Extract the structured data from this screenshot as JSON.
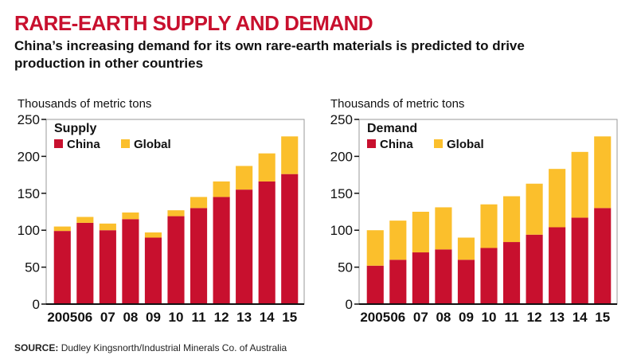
{
  "title": "RARE-EARTH SUPPLY AND DEMAND",
  "subtitle": "China’s increasing demand for its own rare-earth materials is predicted to drive production in other countries",
  "source_label": "SOURCE:",
  "source_text": "Dudley Kingsnorth/Industrial Minerals Co. of Australia",
  "colors": {
    "china": "#c8102e",
    "global": "#fbbf2c",
    "title": "#c8102e",
    "plot_bg": "#ffffff",
    "axis": "#111111"
  },
  "chart_data": [
    {
      "type": "bar",
      "stacked": true,
      "title": "Supply",
      "ylabel": "Thousands of metric tons",
      "ylim": [
        0,
        250
      ],
      "yticks": [
        0,
        50,
        100,
        150,
        200,
        250
      ],
      "categories": [
        "2005",
        "06",
        "07",
        "08",
        "09",
        "10",
        "11",
        "12",
        "13",
        "14",
        "15"
      ],
      "legend_position": "top-left",
      "series": [
        {
          "name": "China",
          "color": "#c8102e",
          "values": [
            99,
            110,
            100,
            115,
            90,
            119,
            130,
            145,
            155,
            166,
            176
          ]
        },
        {
          "name": "Global",
          "color": "#fbbf2c",
          "values": [
            6,
            8,
            9,
            9,
            7,
            8,
            15,
            21,
            32,
            38,
            51
          ]
        }
      ]
    },
    {
      "type": "bar",
      "stacked": true,
      "title": "Demand",
      "ylabel": "Thousands of metric tons",
      "ylim": [
        0,
        250
      ],
      "yticks": [
        0,
        50,
        100,
        150,
        200,
        250
      ],
      "categories": [
        "2005",
        "06",
        "07",
        "08",
        "09",
        "10",
        "11",
        "12",
        "13",
        "14",
        "15"
      ],
      "legend_position": "top-left",
      "series": [
        {
          "name": "China",
          "color": "#c8102e",
          "values": [
            52,
            60,
            70,
            74,
            60,
            76,
            84,
            94,
            104,
            117,
            130
          ]
        },
        {
          "name": "Global",
          "color": "#fbbf2c",
          "values": [
            48,
            53,
            55,
            57,
            30,
            59,
            62,
            69,
            79,
            89,
            97
          ]
        }
      ]
    }
  ]
}
